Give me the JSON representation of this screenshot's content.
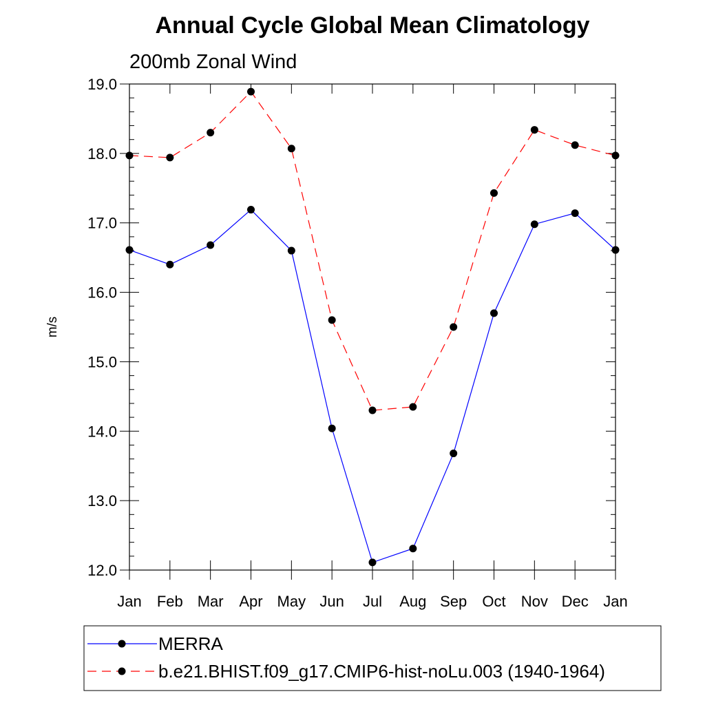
{
  "chart_data": {
    "type": "line",
    "title": "Annual Cycle Global Mean Climatology",
    "subtitle": "200mb Zonal Wind",
    "xlabel": "",
    "ylabel": "m/s",
    "categories": [
      "Jan",
      "Feb",
      "Mar",
      "Apr",
      "May",
      "Jun",
      "Jul",
      "Aug",
      "Sep",
      "Oct",
      "Nov",
      "Dec",
      "Jan"
    ],
    "ylim": [
      12.0,
      19.0
    ],
    "yticks": [
      "12.0",
      "13.0",
      "14.0",
      "15.0",
      "16.0",
      "17.0",
      "18.0",
      "19.0"
    ],
    "grid": false,
    "legend_position": "bottom",
    "series": [
      {
        "name": "MERRA",
        "color": "#0000ff",
        "dash": "solid",
        "marker": "filled-circle",
        "values": [
          16.61,
          16.4,
          16.68,
          17.19,
          16.6,
          14.04,
          12.11,
          12.31,
          13.68,
          15.7,
          16.98,
          17.14,
          16.61
        ]
      },
      {
        "name": "b.e21.BHIST.f09_g17.CMIP6-hist-noLu.003 (1940-1964)",
        "color": "#ff0000",
        "dash": "dashed",
        "marker": "filled-circle",
        "values": [
          17.97,
          17.94,
          18.3,
          18.89,
          18.07,
          15.6,
          14.3,
          14.35,
          15.5,
          17.43,
          18.34,
          18.12,
          17.97
        ]
      }
    ]
  }
}
